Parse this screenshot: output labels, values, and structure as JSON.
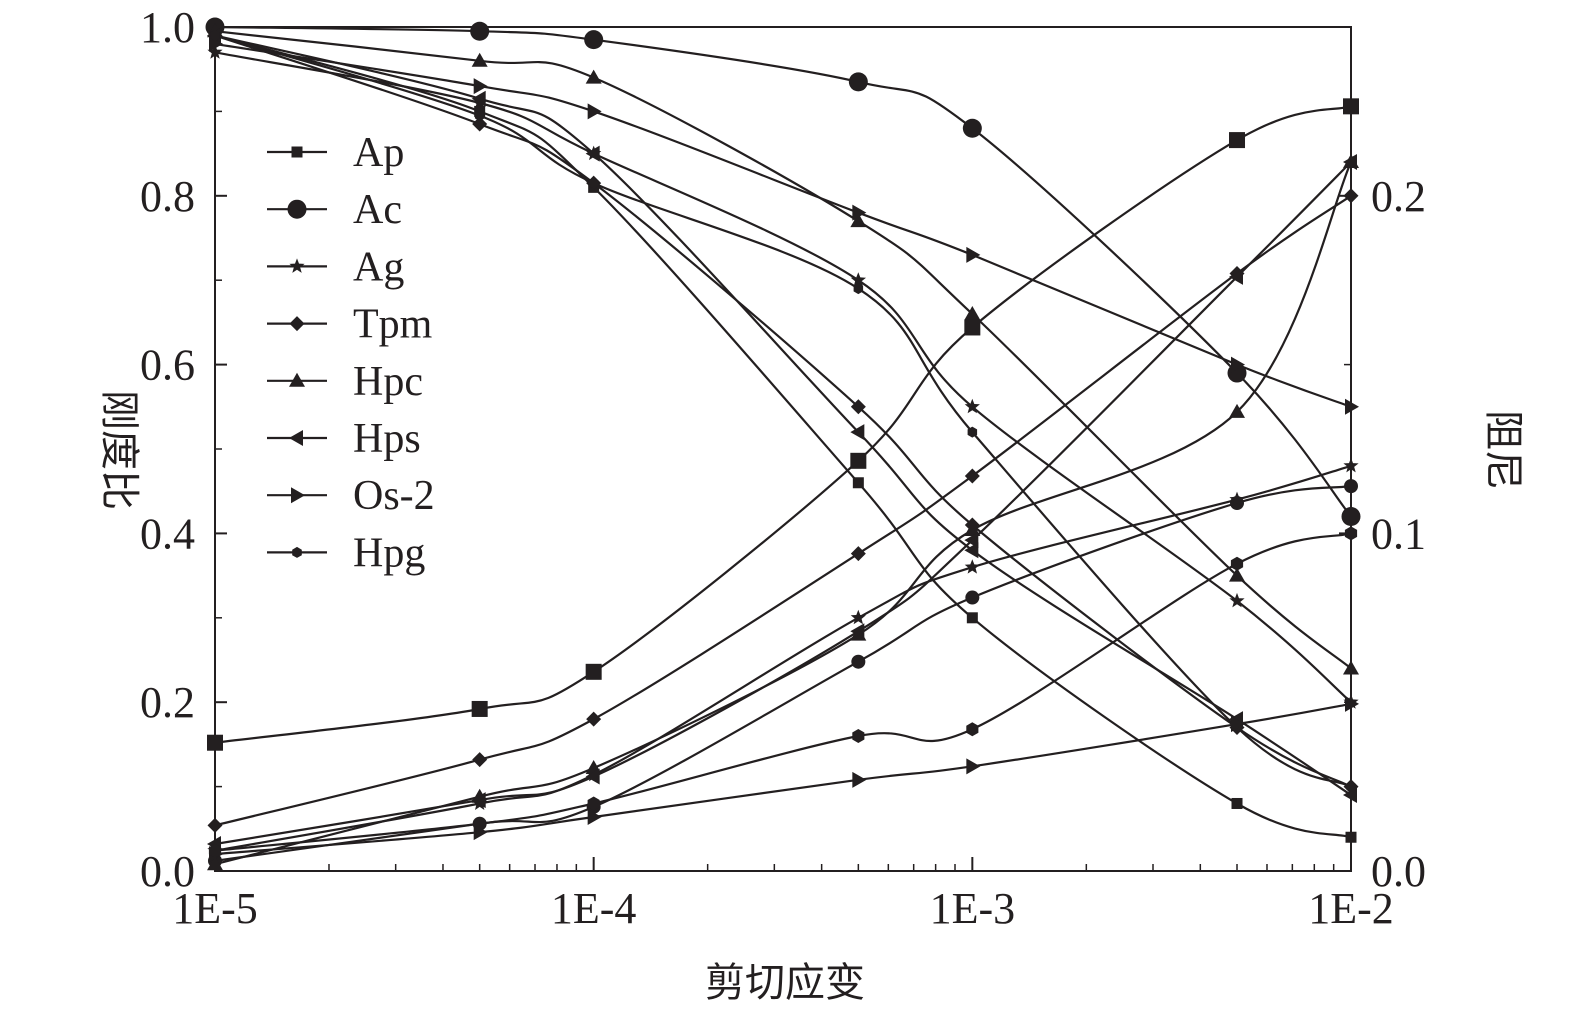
{
  "chart_data": {
    "type": "line",
    "x_scale": "log",
    "x": [
      1e-05,
      5e-05,
      0.0001,
      0.0005,
      0.001,
      0.005,
      0.01
    ],
    "x_ticks": [
      1e-05,
      0.0001,
      0.001,
      0.01
    ],
    "x_tick_labels": [
      "1E-5",
      "1E-4",
      "1E-3",
      "1E-2"
    ],
    "xlabel": "剪切应变",
    "xlim": [
      1e-05,
      0.01
    ],
    "ylabel_left": "刚度比",
    "ylim_left": [
      0,
      1
    ],
    "left_ticks": [
      0,
      0.2,
      0.4,
      0.6,
      0.8,
      1.0
    ],
    "left_tick_labels": [
      "0.0",
      "0.2",
      "0.4",
      "0.6",
      "0.8",
      "1.0"
    ],
    "ylabel_right": "阻尼",
    "ylim_right": [
      0,
      0.25
    ],
    "right_ticks": [
      0,
      0.1,
      0.2
    ],
    "right_tick_labels": [
      "0.0",
      "0.1",
      "0.2"
    ],
    "legend_position": "top-left",
    "grid": false,
    "line_color": "#231f20",
    "stiffness_series": [
      {
        "name": "Ap",
        "marker": "square-small",
        "values": [
          0.99,
          0.9,
          0.81,
          0.46,
          0.3,
          0.08,
          0.04
        ]
      },
      {
        "name": "Ac",
        "marker": "circle-large",
        "values": [
          1.0,
          0.995,
          0.985,
          0.935,
          0.88,
          0.59,
          0.42
        ]
      },
      {
        "name": "Ag",
        "marker": "star",
        "values": [
          0.97,
          0.91,
          0.85,
          0.7,
          0.55,
          0.32,
          0.2
        ]
      },
      {
        "name": "Tpm",
        "marker": "diamond",
        "values": [
          0.99,
          0.885,
          0.815,
          0.55,
          0.41,
          0.17,
          0.1
        ]
      },
      {
        "name": "Hpc",
        "marker": "triangle-up",
        "values": [
          0.995,
          0.96,
          0.94,
          0.77,
          0.66,
          0.35,
          0.24
        ]
      },
      {
        "name": "Hps",
        "marker": "triangle-left",
        "values": [
          0.99,
          0.915,
          0.85,
          0.52,
          0.38,
          0.18,
          0.09
        ]
      },
      {
        "name": "Os-2",
        "marker": "triangle-right",
        "values": [
          0.98,
          0.93,
          0.9,
          0.78,
          0.73,
          0.6,
          0.55
        ]
      },
      {
        "name": "Hpg",
        "marker": "hexagon-small",
        "values": [
          0.99,
          0.895,
          0.815,
          0.69,
          0.52,
          0.17,
          0.1
        ]
      }
    ],
    "damping_series": [
      {
        "name": "Ap",
        "marker": "square-large",
        "values": [
          0.038,
          0.048,
          0.059,
          0.1215,
          0.161,
          0.2165,
          0.2265
        ]
      },
      {
        "name": "Ac",
        "marker": "circle",
        "values": [
          0.003,
          0.014,
          0.019,
          0.062,
          0.081,
          0.109,
          0.114
        ]
      },
      {
        "name": "Ag",
        "marker": "star",
        "values": [
          0.006,
          0.02,
          0.0285,
          0.075,
          0.09,
          0.11,
          0.12
        ]
      },
      {
        "name": "Tpm",
        "marker": "diamond",
        "values": [
          0.0135,
          0.033,
          0.045,
          0.094,
          0.117,
          0.177,
          0.2
        ]
      },
      {
        "name": "Hpc",
        "marker": "triangle-up",
        "values": [
          0.002,
          0.022,
          0.0305,
          0.07,
          0.101,
          0.136,
          0.21
        ]
      },
      {
        "name": "Hps",
        "marker": "triangle-left",
        "values": [
          0.008,
          0.021,
          0.028,
          0.071,
          0.098,
          0.176,
          0.21
        ]
      },
      {
        "name": "Os-2",
        "marker": "triangle-right",
        "values": [
          0.005,
          0.0115,
          0.016,
          0.027,
          0.031,
          0.0435,
          0.0495
        ]
      },
      {
        "name": "Hpg",
        "marker": "hexagon",
        "values": [
          0.006,
          0.014,
          0.02,
          0.04,
          0.042,
          0.091,
          0.1
        ]
      }
    ]
  }
}
